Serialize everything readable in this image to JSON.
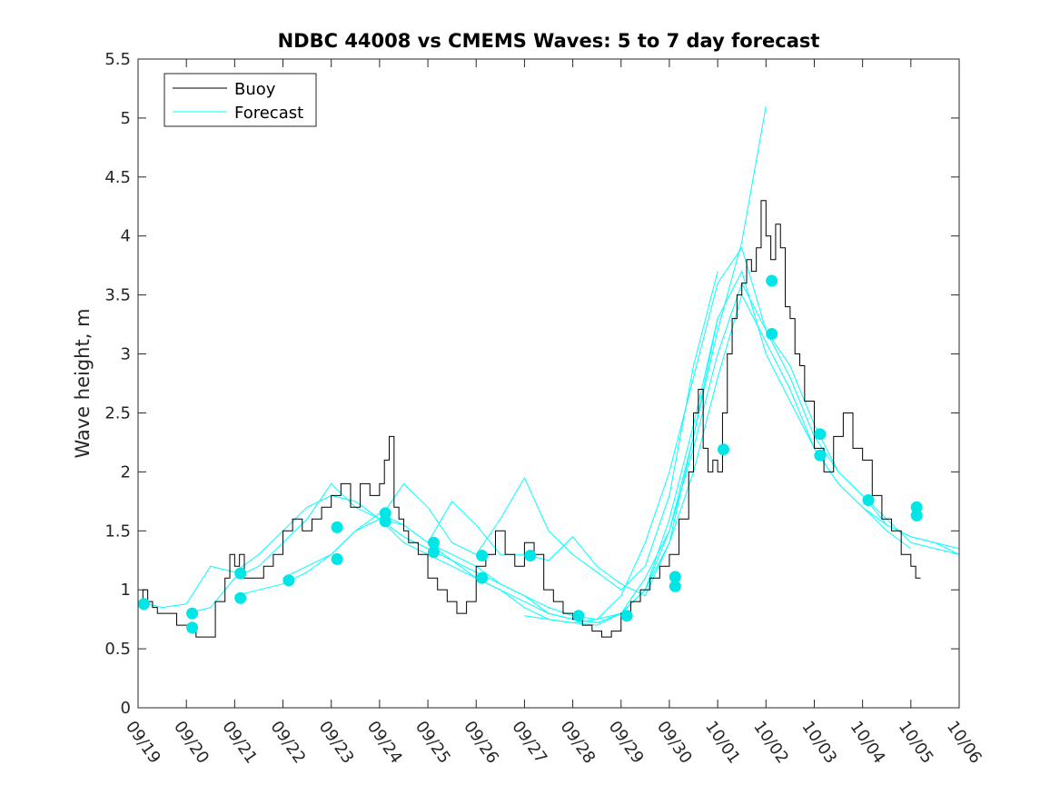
{
  "chart_data": {
    "type": "line",
    "title": "NDBC 44008 vs CMEMS Waves: 5 to 7 day forecast",
    "xlabel": "",
    "ylabel": "Wave height, m",
    "xlim": [
      0,
      17
    ],
    "ylim": [
      0,
      5.5
    ],
    "x_tick_labels": [
      "09/19",
      "09/20",
      "09/21",
      "09/22",
      "09/23",
      "09/24",
      "09/25",
      "09/26",
      "09/27",
      "09/28",
      "09/29",
      "09/30",
      "10/01",
      "10/02",
      "10/03",
      "10/04",
      "10/05",
      "10/06"
    ],
    "y_ticks": [
      0,
      0.5,
      1,
      1.5,
      2,
      2.5,
      3,
      3.5,
      4,
      4.5,
      5,
      5.5
    ],
    "y_tick_labels": [
      "0",
      "0.5",
      "1",
      "1.5",
      "2",
      "2.5",
      "3",
      "3.5",
      "4",
      "4.5",
      "5",
      "5.5"
    ],
    "legend": {
      "position": "top-left",
      "entries": [
        "Buoy",
        "Forecast"
      ]
    },
    "colors": {
      "buoy": "#000000",
      "forecast": "#00ffff",
      "marker": "#00e6e6",
      "axis": "#262626"
    },
    "series": [
      {
        "name": "Buoy",
        "color": "#000000",
        "x": [
          0,
          0.1,
          0.2,
          0.3,
          0.4,
          0.5,
          0.6,
          0.8,
          1.0,
          1.2,
          1.4,
          1.6,
          1.8,
          1.9,
          2.0,
          2.1,
          2.2,
          2.4,
          2.6,
          2.8,
          3.0,
          3.2,
          3.4,
          3.6,
          3.8,
          4.0,
          4.2,
          4.4,
          4.6,
          4.8,
          5.0,
          5.1,
          5.2,
          5.3,
          5.4,
          5.5,
          5.6,
          5.8,
          6.0,
          6.2,
          6.4,
          6.6,
          6.8,
          7.0,
          7.2,
          7.4,
          7.6,
          7.8,
          8.0,
          8.2,
          8.4,
          8.6,
          8.8,
          9.0,
          9.2,
          9.4,
          9.6,
          9.8,
          10.0,
          10.2,
          10.4,
          10.6,
          10.8,
          11.0,
          11.2,
          11.4,
          11.5,
          11.6,
          11.7,
          11.8,
          11.9,
          12.0,
          12.1,
          12.2,
          12.3,
          12.4,
          12.5,
          12.6,
          12.7,
          12.8,
          12.9,
          13.0,
          13.1,
          13.2,
          13.3,
          13.4,
          13.5,
          13.6,
          13.7,
          13.8,
          14.0,
          14.2,
          14.4,
          14.6,
          14.8,
          15.0,
          15.2,
          15.4,
          15.6,
          15.8,
          16.0,
          16.1,
          16.2
        ],
        "y": [
          0.9,
          1.0,
          0.9,
          0.85,
          0.8,
          0.8,
          0.8,
          0.7,
          0.7,
          0.6,
          0.6,
          0.9,
          1.1,
          1.3,
          1.2,
          1.3,
          1.1,
          1.1,
          1.2,
          1.3,
          1.5,
          1.6,
          1.5,
          1.6,
          1.7,
          1.8,
          1.9,
          1.7,
          1.9,
          1.8,
          1.9,
          2.1,
          2.3,
          1.7,
          1.6,
          1.5,
          1.4,
          1.3,
          1.1,
          1.0,
          0.9,
          0.8,
          0.9,
          1.2,
          1.3,
          1.5,
          1.3,
          1.2,
          1.4,
          1.3,
          1.0,
          0.9,
          0.8,
          0.75,
          0.7,
          0.65,
          0.6,
          0.65,
          0.8,
          0.9,
          1.0,
          1.1,
          1.2,
          1.3,
          1.6,
          2.0,
          2.5,
          2.7,
          2.2,
          2.0,
          2.1,
          2.0,
          2.5,
          3.0,
          3.3,
          3.5,
          3.6,
          3.8,
          3.7,
          3.9,
          4.3,
          4.0,
          3.8,
          4.1,
          3.9,
          3.4,
          3.3,
          3.0,
          2.9,
          2.6,
          2.2,
          2.0,
          2.3,
          2.5,
          2.2,
          2.1,
          1.8,
          1.6,
          1.5,
          1.3,
          1.2,
          1.1,
          1.1
        ]
      },
      {
        "name": "Forecast",
        "color": "#00ffff",
        "x": [
          0,
          0.5,
          1.0,
          1.5,
          2.0,
          2.5,
          3.0,
          3.5,
          4.0,
          4.5,
          5.0,
          5.5,
          6.0,
          6.5,
          7.0,
          7.5,
          8.0,
          8.5,
          9.0,
          9.5,
          10.0,
          10.5,
          11.0,
          11.5,
          12.0,
          12.5,
          13.0,
          13.5,
          14.0,
          14.5,
          15.0,
          15.5,
          16.0,
          16.5,
          17.0
        ],
        "y": [
          0.9,
          0.85,
          0.88,
          1.2,
          1.15,
          1.3,
          1.5,
          1.7,
          1.8,
          1.75,
          1.6,
          1.45,
          1.35,
          1.25,
          1.1,
          1.0,
          0.85,
          0.75,
          0.72,
          0.75,
          0.95,
          1.4,
          2.0,
          2.8,
          3.6,
          3.9,
          3.2,
          2.9,
          2.4,
          2.0,
          1.8,
          1.6,
          1.4,
          1.35,
          1.3
        ]
      },
      {
        "name": "Forecast",
        "color": "#00ffff",
        "x": [
          1.0,
          1.5,
          2.0,
          2.5,
          3.0,
          3.5,
          4.0,
          4.5,
          5.0,
          5.5,
          6.0,
          6.5,
          7.0,
          7.5,
          8.0,
          8.5,
          9.0,
          9.5,
          10.0,
          10.5,
          11.0,
          11.5,
          12.0,
          12.5,
          13.0,
          13.5,
          14.0,
          14.5,
          15.0,
          15.5,
          16.0,
          16.5,
          17.0
        ],
        "y": [
          0.8,
          0.85,
          1.1,
          1.2,
          1.4,
          1.6,
          1.9,
          1.7,
          1.6,
          1.55,
          1.4,
          1.25,
          1.15,
          1.05,
          0.95,
          0.8,
          0.75,
          0.72,
          0.8,
          1.0,
          1.6,
          2.4,
          3.3,
          3.7,
          3.0,
          2.6,
          2.2,
          1.9,
          1.7,
          1.55,
          1.45,
          1.4,
          1.3
        ]
      },
      {
        "name": "Forecast",
        "color": "#00ffff",
        "x": [
          2.0,
          2.5,
          3.0,
          3.5,
          4.0,
          4.5,
          5.0,
          5.5,
          6.0,
          6.5,
          7.0,
          7.5,
          8.0,
          8.5,
          9.0,
          9.5,
          10.0,
          10.5,
          11.0,
          11.5,
          12.0,
          12.5,
          13.0,
          13.5,
          14.0,
          14.5,
          15.0,
          15.5,
          16.0,
          16.5,
          17.0
        ],
        "y": [
          0.95,
          1.0,
          1.05,
          1.15,
          1.3,
          1.5,
          1.65,
          1.55,
          1.4,
          1.3,
          1.2,
          1.05,
          0.95,
          0.85,
          0.78,
          0.75,
          0.8,
          1.1,
          1.5,
          2.2,
          3.0,
          3.6,
          3.2,
          2.8,
          2.3,
          2.0,
          1.8,
          1.55,
          1.45,
          1.4,
          1.35
        ]
      },
      {
        "name": "Forecast",
        "color": "#00ffff",
        "x": [
          3.0,
          3.5,
          4.0,
          4.5,
          5.0,
          5.5,
          6.0,
          6.5,
          7.0,
          7.5,
          8.0,
          8.5,
          9.0,
          9.5,
          10.0,
          10.5,
          11.0,
          11.5,
          12.0,
          12.5,
          13.0,
          13.5,
          14.0,
          14.5,
          15.0,
          15.5,
          16.0
        ],
        "y": [
          1.1,
          1.2,
          1.3,
          1.5,
          1.6,
          1.4,
          1.3,
          1.2,
          1.1,
          1.0,
          0.9,
          0.8,
          0.75,
          0.72,
          0.8,
          1.0,
          1.4,
          2.0,
          2.8,
          3.5,
          3.1,
          2.7,
          2.2,
          1.9,
          1.7,
          1.5,
          1.35
        ]
      },
      {
        "name": "Forecast",
        "color": "#00ffff",
        "x": [
          8.0,
          8.5,
          9.0,
          9.5,
          10.0,
          10.5,
          11.0,
          11.5,
          12.0,
          12.5,
          13.0
        ],
        "y": [
          0.78,
          0.75,
          0.72,
          0.7,
          0.8,
          1.0,
          1.5,
          2.3,
          3.2,
          3.95,
          5.1
        ]
      },
      {
        "name": "Forecast",
        "color": "#00ffff",
        "x": [
          5.0,
          5.5,
          6.0,
          6.5,
          7.0,
          7.5,
          8.0,
          8.5,
          9.0,
          9.5,
          10.0,
          10.5,
          11.0,
          11.5,
          12.0
        ],
        "y": [
          1.6,
          1.9,
          1.7,
          1.4,
          1.3,
          1.6,
          1.95,
          1.5,
          1.3,
          1.15,
          1.0,
          1.2,
          1.8,
          2.9,
          3.7
        ]
      },
      {
        "name": "Forecast",
        "color": "#00ffff",
        "x": [
          6.0,
          6.5,
          7.0,
          7.5,
          8.0,
          8.5,
          9.0,
          9.5,
          10.0,
          10.5,
          11.0,
          11.5,
          12.0
        ],
        "y": [
          1.4,
          1.75,
          1.55,
          1.3,
          1.3,
          1.25,
          1.45,
          1.2,
          1.05,
          0.95,
          1.4,
          2.3,
          3.3
        ]
      }
    ],
    "markers": {
      "name": "Forecast daily points",
      "color": "#00e6e6",
      "x": [
        0.12,
        1.12,
        1.12,
        2.12,
        2.12,
        3.12,
        4.12,
        4.12,
        5.12,
        5.12,
        6.12,
        6.12,
        7.12,
        7.12,
        8.12,
        9.12,
        10.12,
        11.12,
        11.12,
        12.12,
        13.12,
        13.12,
        14.12,
        14.12,
        15.12,
        16.12,
        16.12
      ],
      "y": [
        0.88,
        0.8,
        0.68,
        1.14,
        0.93,
        1.08,
        1.53,
        1.26,
        1.65,
        1.58,
        1.4,
        1.32,
        1.29,
        1.1,
        1.29,
        0.78,
        0.78,
        1.11,
        1.03,
        2.19,
        3.62,
        3.17,
        2.32,
        2.14,
        1.76,
        1.7,
        1.63
      ]
    }
  }
}
